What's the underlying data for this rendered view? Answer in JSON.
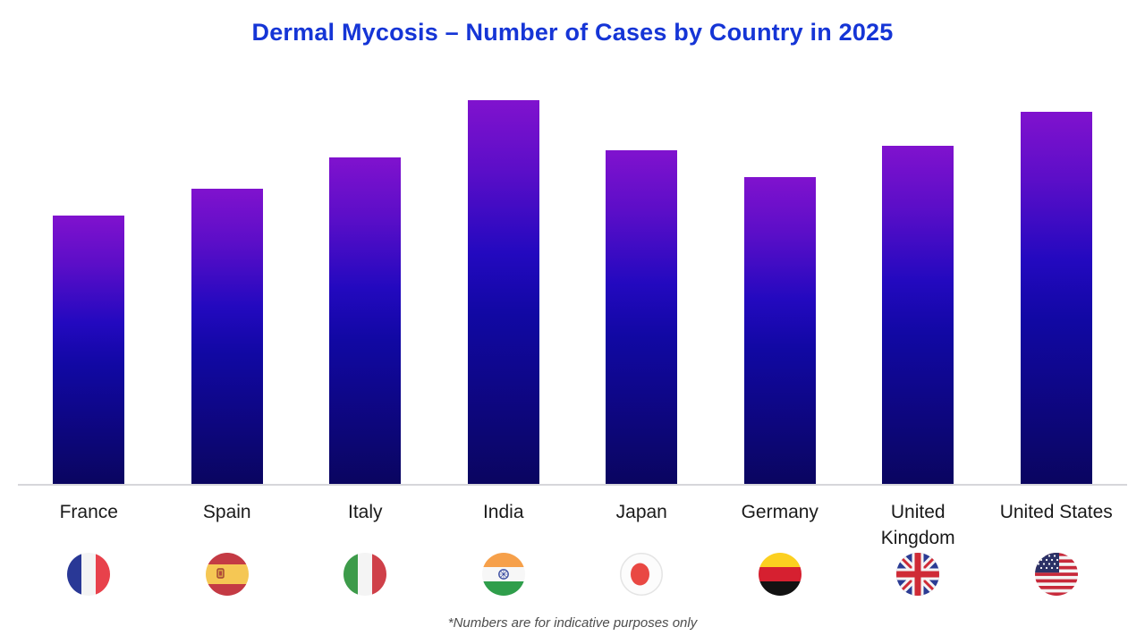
{
  "title": {
    "text": "Dermal Mycosis – Number of Cases by Country in 2025",
    "color": "#1535D6"
  },
  "chart_data": {
    "type": "bar",
    "title": "Dermal Mycosis – Number of Cases by Country in 2025",
    "categories": [
      "France",
      "Spain",
      "Italy",
      "India",
      "Japan",
      "Germany",
      "United Kingdom",
      "United States"
    ],
    "values": [
      70,
      77,
      85,
      100,
      87,
      80,
      88,
      97
    ],
    "values_unit": "relative bar height as % of tallest bar (India); no numeric y-axis shown, values estimated from pixels",
    "xlabel": "",
    "ylabel": "",
    "y_axis_ticks": "none",
    "gridlines": false,
    "legend_position": "none",
    "footnote": "*Numbers are for indicative purposes only",
    "bar_gradient_top_to_bottom": [
      "#8012CE",
      "#2309BF",
      "#0A0560"
    ],
    "baseline_color": "#D6D6DA",
    "flag_icons": [
      "flag-france-icon",
      "flag-spain-icon",
      "flag-italy-icon",
      "flag-india-icon",
      "flag-japan-icon",
      "flag-germany-icon",
      "flag-united-kingdom-icon",
      "flag-united-states-icon"
    ]
  },
  "footnote": {
    "text": "*Numbers are for indicative purposes only"
  }
}
